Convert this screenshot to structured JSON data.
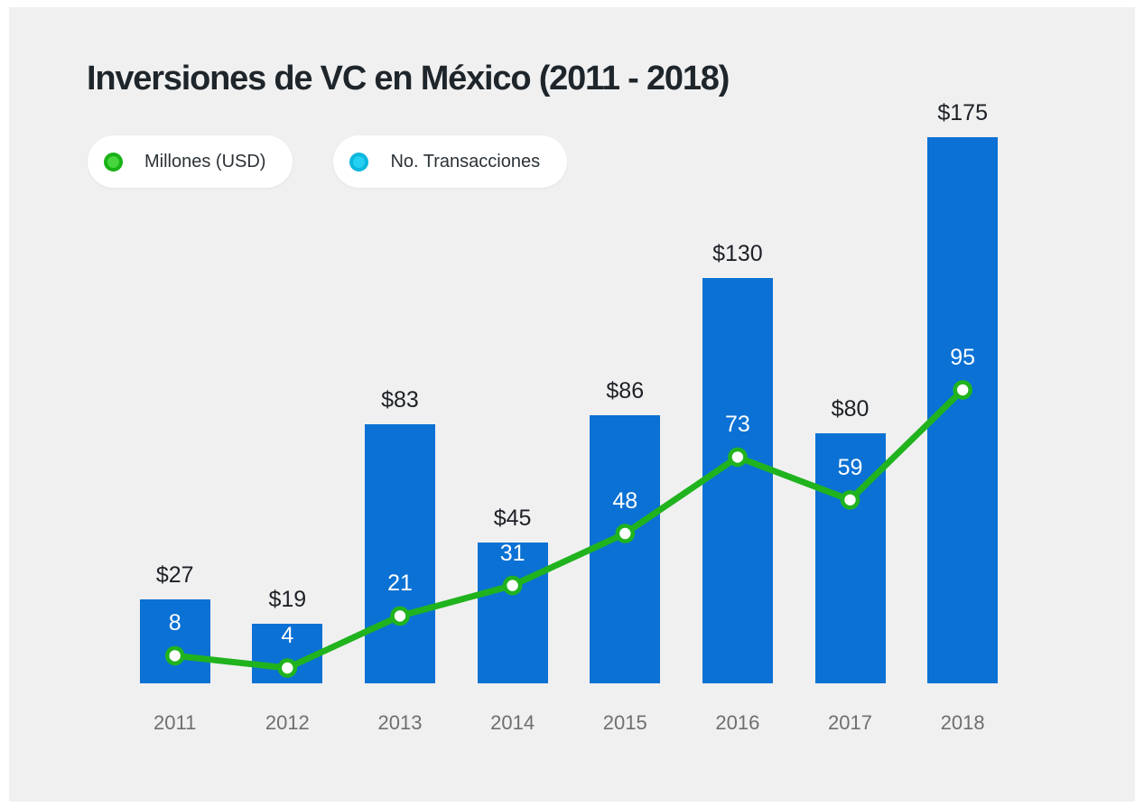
{
  "title": "Inversiones de VC en México (2011 - 2018)",
  "colors": {
    "page_background": "#ffffff",
    "panel_background": "#f0f0f1",
    "bar": "#0b71d4",
    "line": "#20b31e",
    "marker_fill": "#ffffff",
    "amount_label_text": "#1d2126",
    "bar_value_label_text": "#ffffff",
    "axis_label_text": "#6f6f6f",
    "title_text": "#1f262b"
  },
  "legend": [
    {
      "label": "Millones (USD)",
      "dot_fill": "#47d53e",
      "dot_ring": "#19b216"
    },
    {
      "label": "No. Transacciones",
      "dot_fill": "#24cff2",
      "dot_ring": "#0cb7dd"
    }
  ],
  "chart_data": {
    "type": "bar",
    "subtype": "bar+line combo",
    "title": "Inversiones de VC en México (2011 - 2018)",
    "categories": [
      "2011",
      "2012",
      "2013",
      "2014",
      "2015",
      "2016",
      "2017",
      "2018"
    ],
    "series": [
      {
        "name": "Millones (USD)",
        "type": "bar",
        "color": "#0b71d4",
        "values": [
          27,
          19,
          83,
          45,
          86,
          130,
          80,
          175
        ],
        "data_labels": [
          "$27",
          "$19",
          "$83",
          "$45",
          "$86",
          "$130",
          "$80",
          "$175"
        ],
        "label_position": "above-bar"
      },
      {
        "name": "No. Transacciones",
        "type": "line",
        "color": "#20b31e",
        "values": [
          8,
          4,
          21,
          31,
          48,
          73,
          59,
          95
        ],
        "marker": "circle-white-with-green-ring",
        "label_position": "above-marker"
      }
    ],
    "xlabel": "",
    "ylabel": "",
    "grid": false,
    "axes_visible": false,
    "legend_position": "top-left"
  }
}
